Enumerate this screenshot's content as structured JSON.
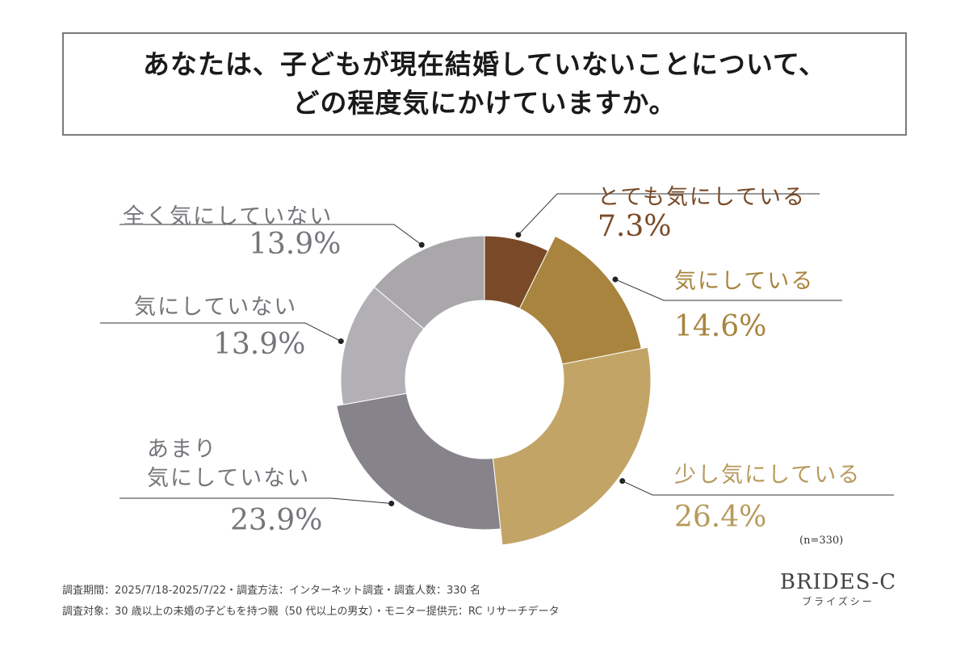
{
  "title": {
    "line1": "あなたは、子どもが現在結婚していないことについて、",
    "line2": "どの程度気にかけていますか。"
  },
  "chart_data": {
    "type": "pie",
    "donut": true,
    "categories": [
      "とても気にしている",
      "気にしている",
      "少し気にしている",
      "あまり気にしていない",
      "気にしていない",
      "全く気にしていない"
    ],
    "values": [
      7.3,
      14.6,
      26.4,
      23.9,
      13.9,
      13.9
    ],
    "value_labels": [
      "7.3%",
      "14.6%",
      "26.4%",
      "23.9%",
      "13.9%",
      "13.9%"
    ],
    "colors": [
      "#7a4a28",
      "#a8843e",
      "#c2a467",
      "#86838a",
      "#b2b0b5",
      "#a9a7aa"
    ],
    "label_colors": [
      "#7a4a28",
      "#a8843e",
      "#b89a5c",
      "#77757b",
      "#77757b",
      "#77757b"
    ],
    "n_note": "(n=330)"
  },
  "labels": {
    "wrap_line1": "あまり",
    "wrap_line2": "気にしていない"
  },
  "footer": {
    "line1": "調査期間：2025/7/18-2025/7/22・調査方法：インターネット調査・調査人数：330 名",
    "line2": "調査対象：30 歳以上の未婚の子どもを持つ親（50 代以上の男女）・モニター提供元：RC リサーチデータ"
  },
  "brand": {
    "name": "BRIDES-C",
    "kana": "ブライズシー"
  }
}
